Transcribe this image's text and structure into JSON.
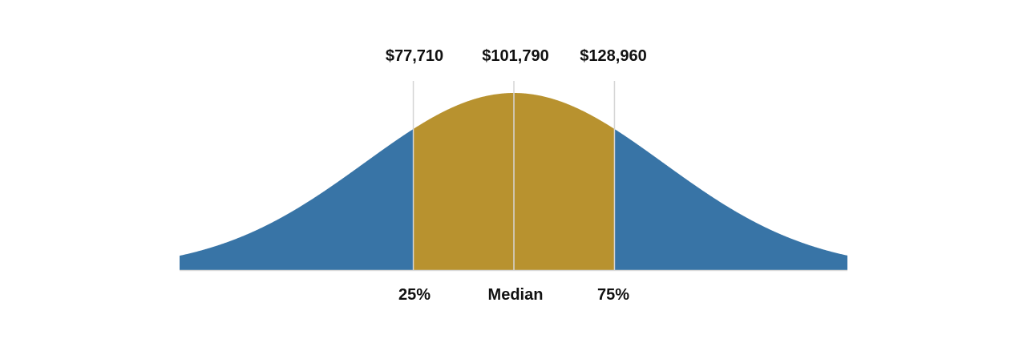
{
  "chart_data": {
    "type": "area",
    "title": "",
    "xlabel": "",
    "ylabel": "",
    "grid": false,
    "legend": "none",
    "markers": [
      {
        "percentile": 25,
        "label": "25%",
        "value": 77710,
        "value_label": "$77,710"
      },
      {
        "percentile": 50,
        "label": "Median",
        "value": 101790,
        "value_label": "$101,790"
      },
      {
        "percentile": 75,
        "label": "75%",
        "value": 128960,
        "value_label": "$128,960"
      }
    ],
    "series": [
      {
        "range": "below 25th percentile",
        "color": "#3874a6"
      },
      {
        "range": "25th to 75th percentile",
        "color": "#b8922f"
      },
      {
        "range": "above 75th percentile",
        "color": "#3874a6"
      }
    ],
    "colors": {
      "tail": "#3874a6",
      "middle": "#b8922f",
      "baseline": "#d9d9d9",
      "marker_line": "#d5d5d5"
    }
  }
}
